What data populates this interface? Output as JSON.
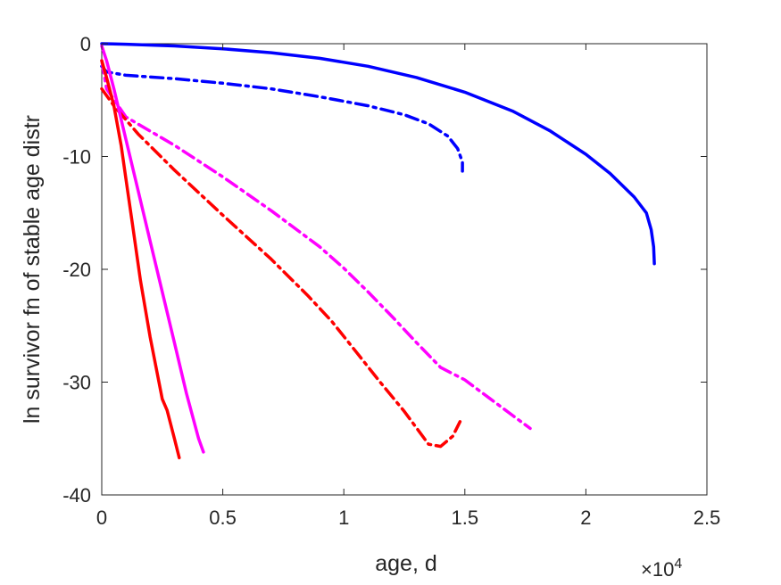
{
  "chart_data": {
    "type": "line",
    "title": "",
    "xlabel": "age, d",
    "ylabel": "ln survivor fn of stable age distr",
    "x_exponent_base": "10",
    "x_exponent_power": "4",
    "xlim": [
      0,
      2.5
    ],
    "ylim": [
      -40,
      0
    ],
    "x_ticks": [
      0,
      0.5,
      1,
      1.5,
      2,
      2.5
    ],
    "x_tick_labels": [
      "0",
      "0.5",
      "1",
      "1.5",
      "2",
      "2.5"
    ],
    "y_ticks": [
      0,
      -10,
      -20,
      -30,
      -40
    ],
    "y_tick_labels": [
      "0",
      "-10",
      "-20",
      "-30",
      "-40"
    ],
    "grid": false,
    "legend": "none",
    "series": [
      {
        "color": "#0000ff",
        "style": "solid",
        "points": [
          [
            0,
            0
          ],
          [
            0.1,
            -0.05
          ],
          [
            0.3,
            -0.2
          ],
          [
            0.5,
            -0.45
          ],
          [
            0.7,
            -0.8
          ],
          [
            0.9,
            -1.3
          ],
          [
            1.1,
            -2.0
          ],
          [
            1.3,
            -3.0
          ],
          [
            1.5,
            -4.3
          ],
          [
            1.7,
            -6.0
          ],
          [
            1.85,
            -7.7
          ],
          [
            2.0,
            -9.8
          ],
          [
            2.1,
            -11.5
          ],
          [
            2.2,
            -13.6
          ],
          [
            2.25,
            -15.0
          ],
          [
            2.27,
            -16.5
          ],
          [
            2.28,
            -18.0
          ],
          [
            2.283,
            -19.5
          ]
        ]
      },
      {
        "color": "#0000ff",
        "style": "dashdot",
        "points": [
          [
            0,
            -2.0
          ],
          [
            0.02,
            -2.5
          ],
          [
            0.1,
            -2.8
          ],
          [
            0.3,
            -3.1
          ],
          [
            0.5,
            -3.5
          ],
          [
            0.7,
            -4.0
          ],
          [
            0.9,
            -4.7
          ],
          [
            1.1,
            -5.5
          ],
          [
            1.25,
            -6.3
          ],
          [
            1.35,
            -7.1
          ],
          [
            1.43,
            -8.2
          ],
          [
            1.47,
            -9.3
          ],
          [
            1.49,
            -10.5
          ],
          [
            1.49,
            -11.3
          ]
        ]
      },
      {
        "color": "#ff00ff",
        "style": "dashdot",
        "points": [
          [
            0,
            -1.5
          ],
          [
            0.02,
            -4.0
          ],
          [
            0.1,
            -6.5
          ],
          [
            0.3,
            -9.0
          ],
          [
            0.5,
            -11.8
          ],
          [
            0.7,
            -14.8
          ],
          [
            0.9,
            -18.0
          ],
          [
            1.0,
            -19.9
          ],
          [
            1.1,
            -22.0
          ],
          [
            1.2,
            -24.2
          ],
          [
            1.3,
            -26.5
          ],
          [
            1.4,
            -28.7
          ],
          [
            1.5,
            -29.8
          ],
          [
            1.6,
            -31.4
          ],
          [
            1.7,
            -33.0
          ],
          [
            1.77,
            -34.1
          ]
        ]
      },
      {
        "color": "#ff0000",
        "style": "dashdot",
        "points": [
          [
            0,
            -4.0
          ],
          [
            0.05,
            -5.5
          ],
          [
            0.15,
            -8.0
          ],
          [
            0.3,
            -11.2
          ],
          [
            0.5,
            -15.2
          ],
          [
            0.7,
            -19.1
          ],
          [
            0.85,
            -22.3
          ],
          [
            0.95,
            -24.6
          ],
          [
            1.05,
            -27.3
          ],
          [
            1.15,
            -30.0
          ],
          [
            1.25,
            -32.6
          ],
          [
            1.35,
            -35.5
          ],
          [
            1.4,
            -35.7
          ],
          [
            1.45,
            -34.8
          ],
          [
            1.48,
            -33.5
          ]
        ]
      },
      {
        "color": "#ff00ff",
        "style": "solid",
        "points": [
          [
            0,
            -0.2
          ],
          [
            0.02,
            -1.5
          ],
          [
            0.05,
            -4.0
          ],
          [
            0.1,
            -8.5
          ],
          [
            0.15,
            -13.0
          ],
          [
            0.2,
            -17.5
          ],
          [
            0.25,
            -22.0
          ],
          [
            0.3,
            -26.5
          ],
          [
            0.35,
            -31.0
          ],
          [
            0.4,
            -35.0
          ],
          [
            0.42,
            -36.2
          ]
        ]
      },
      {
        "color": "#ff0000",
        "style": "solid",
        "points": [
          [
            0,
            -1.5
          ],
          [
            0.02,
            -3.0
          ],
          [
            0.05,
            -5.5
          ],
          [
            0.08,
            -9.0
          ],
          [
            0.1,
            -12.0
          ],
          [
            0.13,
            -16.5
          ],
          [
            0.16,
            -21.0
          ],
          [
            0.2,
            -26.0
          ],
          [
            0.25,
            -31.5
          ],
          [
            0.27,
            -32.5
          ],
          [
            0.3,
            -35.0
          ],
          [
            0.32,
            -36.7
          ]
        ]
      }
    ]
  }
}
